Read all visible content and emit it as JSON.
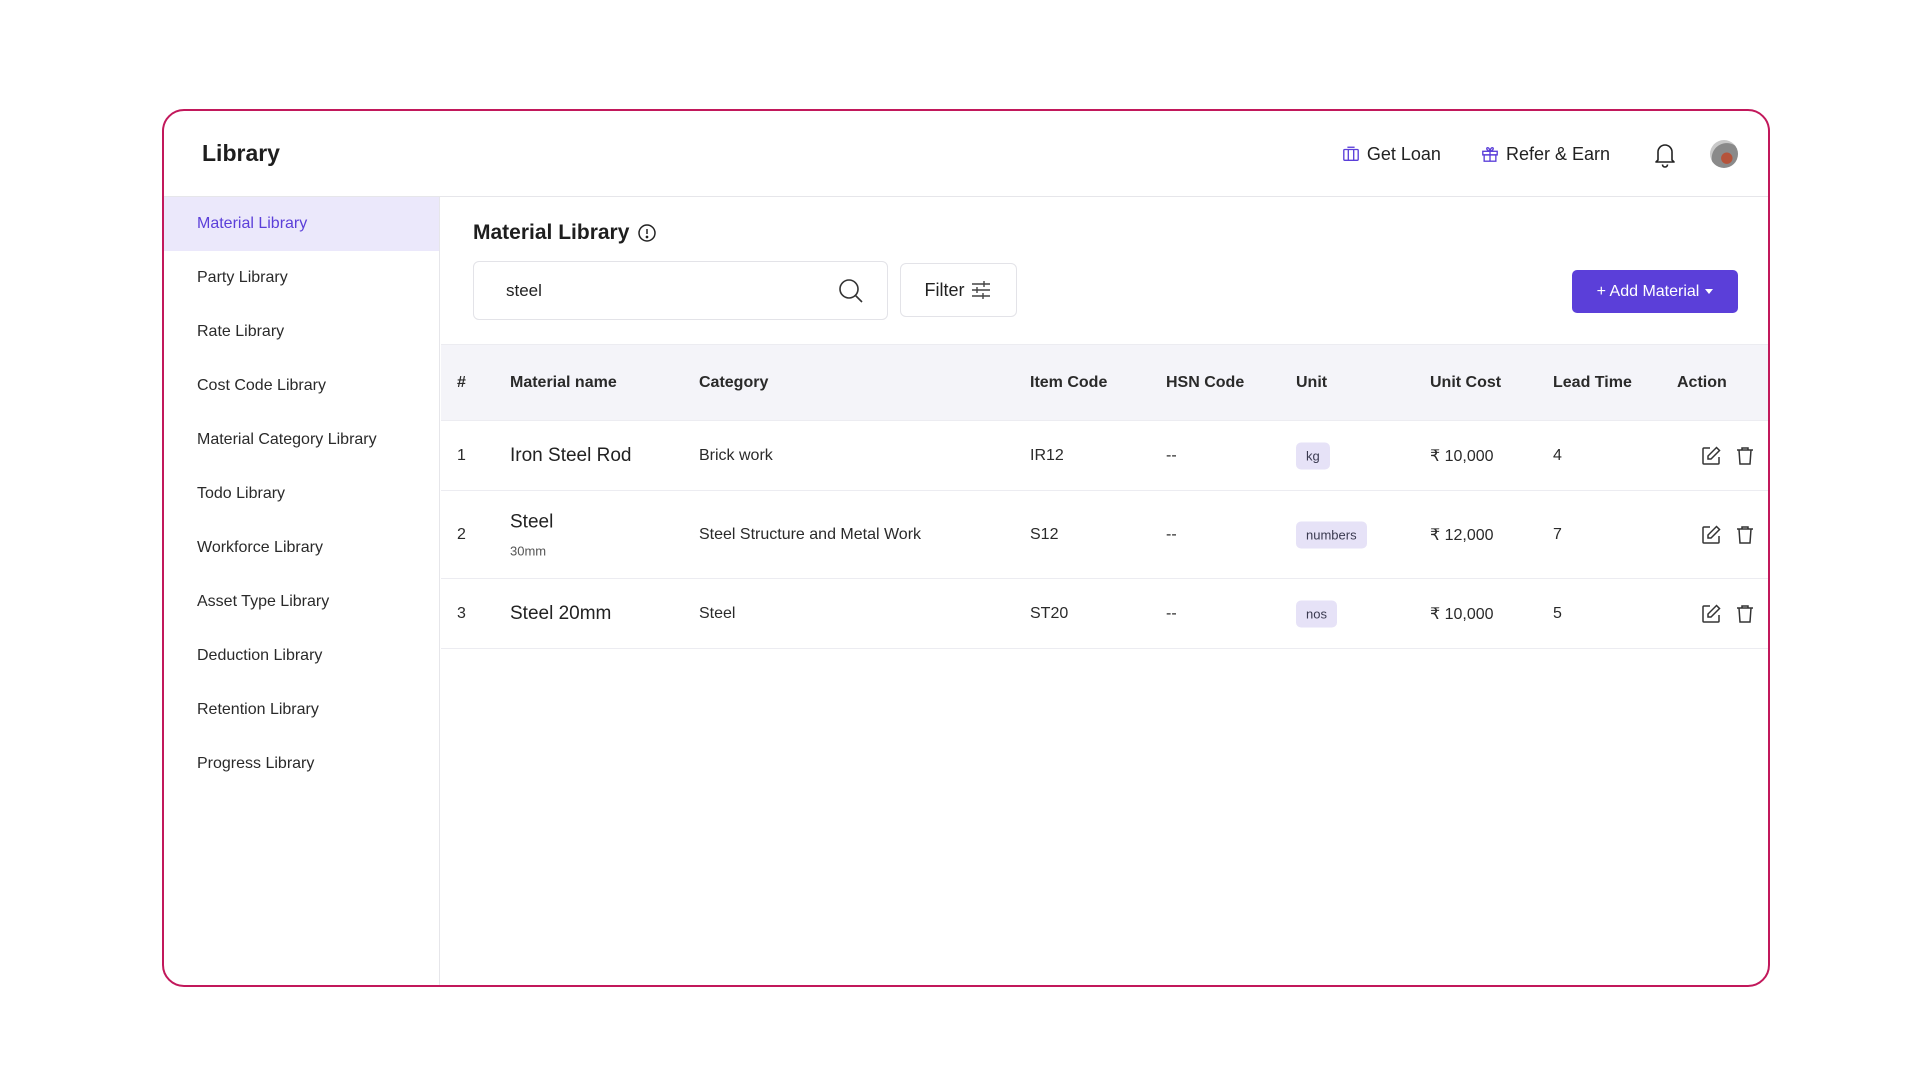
{
  "header": {
    "title": "Library",
    "get_loan": "Get Loan",
    "refer_earn": "Refer & Earn"
  },
  "sidebar": {
    "items": [
      {
        "label": "Material Library",
        "active": true
      },
      {
        "label": "Party Library"
      },
      {
        "label": "Rate Library"
      },
      {
        "label": "Cost Code Library"
      },
      {
        "label": "Material Category Library"
      },
      {
        "label": "Todo Library"
      },
      {
        "label": "Workforce Library"
      },
      {
        "label": "Asset Type Library"
      },
      {
        "label": "Deduction Library"
      },
      {
        "label": "Retention Library"
      },
      {
        "label": "Progress Library"
      }
    ]
  },
  "main": {
    "title": "Material Library",
    "search_value": "steel",
    "filter_label": "Filter",
    "add_label": "+ Add Material"
  },
  "table": {
    "headers": [
      "#",
      "Material name",
      "Category",
      "Item Code",
      "HSN Code",
      "Unit",
      "Unit Cost",
      "Lead Time",
      "Action"
    ],
    "rows": [
      {
        "num": "1",
        "name": "Iron Steel Rod",
        "sub": "",
        "category": "Brick work",
        "item_code": "IR12",
        "hsn": "--",
        "unit": "kg",
        "cost": "₹ 10,000",
        "lead": "4"
      },
      {
        "num": "2",
        "name": "Steel",
        "sub": "30mm",
        "category": "Steel Structure and Metal Work",
        "item_code": "S12",
        "hsn": "--",
        "unit": "numbers",
        "cost": "₹ 12,000",
        "lead": "7"
      },
      {
        "num": "3",
        "name": "Steel 20mm",
        "sub": "",
        "category": "Steel",
        "item_code": "ST20",
        "hsn": "--",
        "unit": "nos",
        "cost": "₹ 10,000",
        "lead": "5"
      }
    ]
  }
}
